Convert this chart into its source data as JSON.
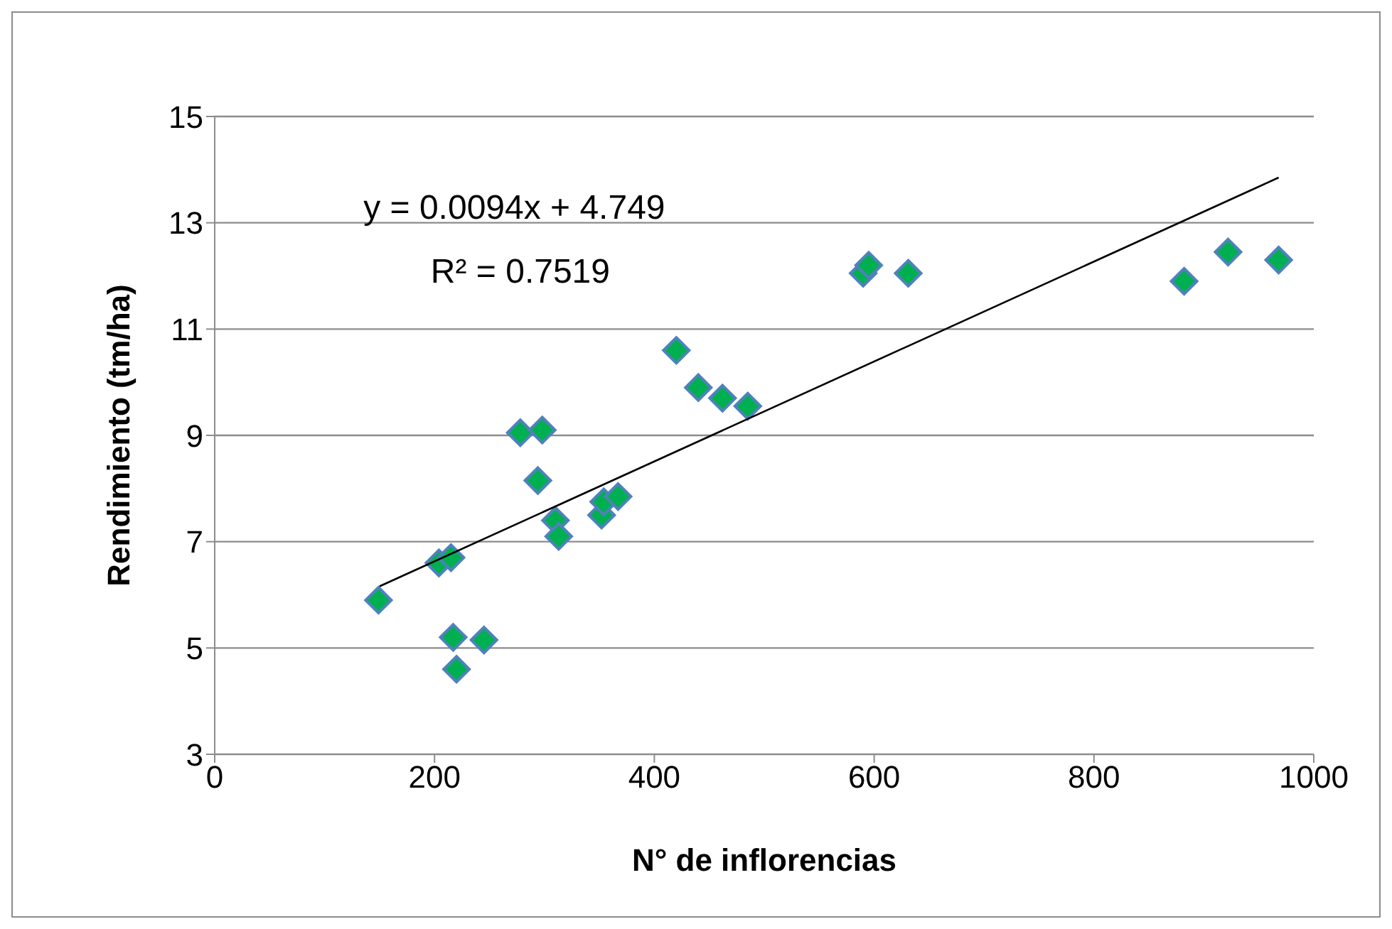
{
  "chart_data": {
    "type": "scatter",
    "xlabel": "N° de inflorencias",
    "ylabel": "Rendimiento (tm/ha)",
    "annotations": [
      "y = 0.0094x + 4.749",
      "R² = 0.7519"
    ],
    "xlim": [
      0,
      1000
    ],
    "xticks": [
      0,
      200,
      400,
      600,
      800,
      1000
    ],
    "ylim": [
      3,
      15
    ],
    "yticks": [
      3,
      5,
      7,
      9,
      11,
      13,
      15
    ],
    "grid": "y",
    "legend": false,
    "marker": "diamond",
    "series": [
      {
        "type": "scatter",
        "color": "#00b050",
        "x": [
          149,
          204,
          215,
          217,
          220,
          245,
          278,
          298,
          294,
          310,
          313,
          352,
          354,
          367,
          420,
          440,
          462,
          485,
          590,
          595,
          631,
          882,
          922,
          968
        ],
        "values": [
          5.9,
          6.6,
          6.7,
          5.2,
          4.6,
          5.15,
          9.05,
          9.1,
          8.15,
          7.4,
          7.1,
          7.5,
          7.75,
          7.85,
          10.6,
          9.9,
          9.7,
          9.55,
          12.05,
          12.2,
          12.05,
          11.9,
          12.45,
          12.3
        ]
      },
      {
        "type": "line",
        "color": "#000000",
        "x": [
          150,
          968
        ],
        "values": [
          6.16,
          13.85
        ],
        "marker": "none"
      }
    ]
  }
}
